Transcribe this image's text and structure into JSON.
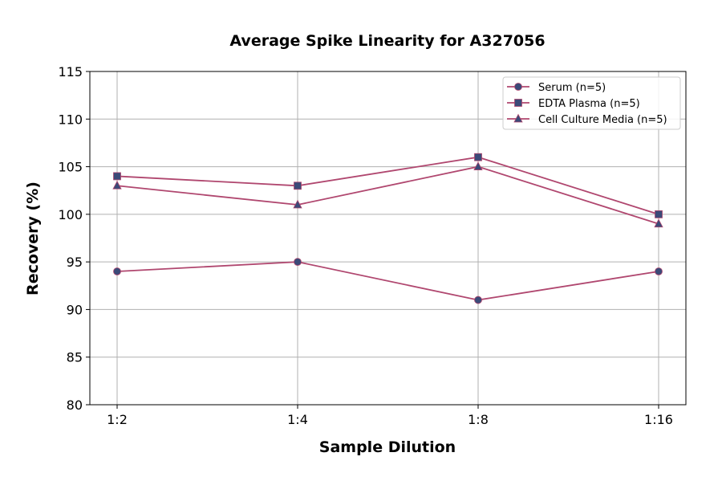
{
  "chart_data": {
    "type": "line",
    "title": "Average Spike Linearity for A327056",
    "xlabel": "Sample Dilution",
    "ylabel": "Recovery (%)",
    "categories": [
      "1:2",
      "1:4",
      "1:8",
      "1:16"
    ],
    "ylim": [
      80,
      115
    ],
    "yticks": [
      80,
      85,
      90,
      95,
      100,
      105,
      110,
      115
    ],
    "grid": true,
    "legend_position": "top-right",
    "series": [
      {
        "name": "Serum (n=5)",
        "values": [
          94,
          95,
          91,
          94
        ],
        "marker": "circle"
      },
      {
        "name": "EDTA Plasma (n=5)",
        "values": [
          104,
          103,
          106,
          100
        ],
        "marker": "square"
      },
      {
        "name": "Cell Culture Media (n=5)",
        "values": [
          103,
          101,
          105,
          99
        ],
        "marker": "triangle"
      }
    ],
    "colors": {
      "line": "#b0476f",
      "marker": "#3b4a78"
    }
  }
}
